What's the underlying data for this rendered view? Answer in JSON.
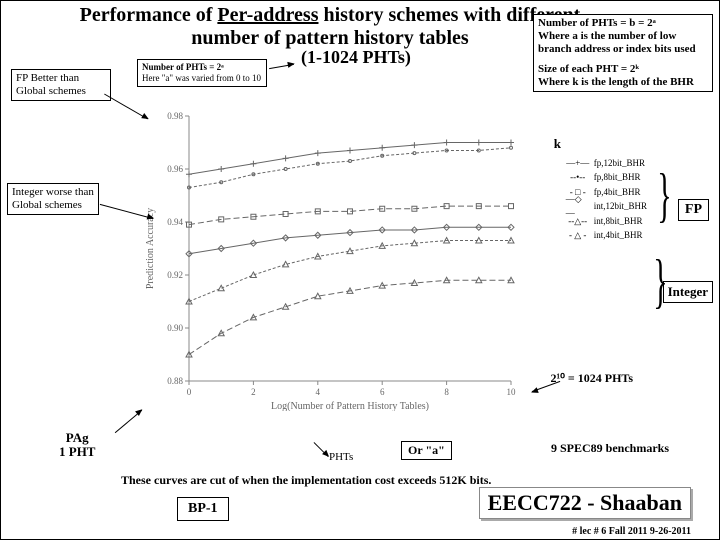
{
  "title_part1": "Performance of ",
  "title_under": "Per-address",
  "title_part2": " history schemes with different number of pattern history tables",
  "subtitle_range": "(1-1024 PHTs)",
  "box_fp_better": "FP Better than Global schemes",
  "box_varied_l1": "Number of PHTs = 2ᵃ",
  "box_varied_l2": "Here \"a\" was varied from 0 to 10",
  "box_right_l1": "Number of PHTs = b = 2ᵃ",
  "box_right_l2": "Where a is the number of low branch address or index bits used",
  "box_right_l3": "",
  "box_right_l4": "Size of each PHT = 2ᵏ",
  "box_right_l5": "Where k is the length of the BHR",
  "box_int_worse": "Integer worse than Global schemes",
  "k_label": "k",
  "fp_badge": "FP",
  "int_badge": "Integer",
  "pht1024": "2¹⁰ = 1024 PHTs",
  "pag_l1": "PAg",
  "pag_l2": "1 PHT",
  "phts_lbl": "PHTs",
  "or_a": "Or \"a\"",
  "spec89": "9 SPEC89 benchmarks",
  "cutoff": "These curves are cut of when the implementation cost exceeds 512K bits.",
  "bp1": "BP-1",
  "eecc": "EECC722 - Shaaban",
  "lec_info": "#  lec # 6    Fall 2011    9-26-2011",
  "chart": {
    "xlabel": "Log(Number of Pattern History Tables)",
    "ylabel": "Prediction Accuracy",
    "xlim": [
      0,
      10
    ],
    "ylim": [
      0.88,
      0.98
    ],
    "xticks": [
      0,
      2,
      4,
      6,
      8,
      10
    ],
    "yticks": [
      0.88,
      0.9,
      0.92,
      0.94,
      0.96,
      0.98
    ],
    "axis_color": "#888888",
    "series": [
      {
        "name": "fp,12bit_BHR",
        "marker": "plus",
        "dash": "0",
        "color": "#666",
        "y": [
          0.958,
          0.96,
          0.962,
          0.964,
          0.966,
          0.967,
          0.968,
          0.969,
          0.97,
          0.97,
          0.97
        ]
      },
      {
        "name": "fp,8bit_BHR",
        "marker": "dot",
        "dash": "3 2",
        "color": "#666",
        "y": [
          0.953,
          0.955,
          0.958,
          0.96,
          0.962,
          0.963,
          0.965,
          0.966,
          0.967,
          0.967,
          0.968
        ]
      },
      {
        "name": "fp,4bit_BHR",
        "marker": "square",
        "dash": "6 3",
        "color": "#666",
        "y": [
          0.939,
          0.941,
          0.942,
          0.943,
          0.944,
          0.944,
          0.945,
          0.945,
          0.946,
          0.946,
          0.946
        ]
      },
      {
        "name": "int,12bit_BHR",
        "marker": "diamond",
        "dash": "0",
        "color": "#666",
        "y": [
          0.928,
          0.93,
          0.932,
          0.934,
          0.935,
          0.936,
          0.937,
          0.937,
          0.938,
          0.938,
          0.938
        ]
      },
      {
        "name": "int,8bit_BHR",
        "marker": "tri",
        "dash": "3 2",
        "color": "#666",
        "y": [
          0.91,
          0.915,
          0.92,
          0.924,
          0.927,
          0.929,
          0.931,
          0.932,
          0.933,
          0.933,
          0.933
        ]
      },
      {
        "name": "int,4bit_BHR",
        "marker": "tri",
        "dash": "6 3",
        "color": "#666",
        "y": [
          0.89,
          0.898,
          0.904,
          0.908,
          0.912,
          0.914,
          0.916,
          0.917,
          0.918,
          0.918,
          0.918
        ]
      }
    ]
  },
  "legend_items": [
    "fp,12bit_BHR",
    "fp,8bit_BHR",
    "fp,4bit_BHR",
    "int,12bit_BHR",
    "int,8bit_BHR",
    "int,4bit_BHR"
  ]
}
